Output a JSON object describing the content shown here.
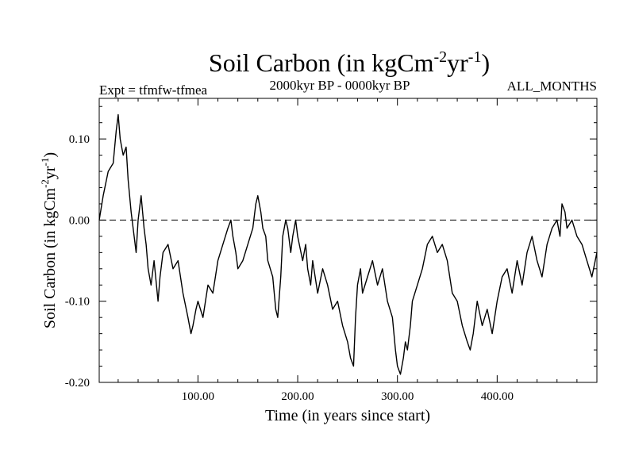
{
  "chart_data": {
    "type": "line",
    "title": "Soil Carbon (in kgCm",
    "title_sup1": "-2",
    "title_mid": "yr",
    "title_sup2": "-1",
    "title_end": ")",
    "subtitle_left": "Expt = tfmfw-tfmea",
    "subtitle_center": "2000kyr BP - 0000kyr BP",
    "subtitle_right": "ALL_MONTHS",
    "xlabel": "Time (in years since start)",
    "ylabel": "Soil Carbon (in kgCm",
    "ylabel_sup1": "-2",
    "ylabel_mid": "yr",
    "ylabel_sup2": "-1",
    "ylabel_end": ")",
    "xlim": [
      1,
      500
    ],
    "ylim": [
      -0.2,
      0.15
    ],
    "xticks": [
      100,
      200,
      300,
      400
    ],
    "xtick_labels": [
      "100.00",
      "200.00",
      "300.00",
      "400.00"
    ],
    "yticks": [
      0.1,
      0.0,
      -0.1,
      -0.2
    ],
    "ytick_labels": [
      "0.10",
      "0.00",
      "-0.10",
      "-0.20"
    ],
    "zero_line": 0.0,
    "series": [
      {
        "name": "Soil Carbon",
        "color": "#000000",
        "x": [
          1,
          5,
          10,
          15,
          18,
          20,
          22,
          25,
          28,
          30,
          33,
          36,
          38,
          40,
          43,
          46,
          48,
          50,
          53,
          56,
          60,
          62,
          65,
          70,
          75,
          80,
          85,
          90,
          93,
          95,
          98,
          100,
          105,
          110,
          115,
          120,
          125,
          130,
          133,
          135,
          138,
          140,
          145,
          150,
          155,
          158,
          160,
          163,
          165,
          168,
          170,
          175,
          178,
          180,
          183,
          185,
          188,
          190,
          193,
          195,
          198,
          200,
          205,
          208,
          210,
          213,
          215,
          220,
          225,
          230,
          235,
          240,
          245,
          250,
          253,
          256,
          258,
          260,
          263,
          265,
          270,
          275,
          280,
          285,
          290,
          295,
          298,
          300,
          303,
          306,
          308,
          310,
          313,
          315,
          320,
          325,
          330,
          335,
          340,
          345,
          350,
          355,
          360,
          365,
          370,
          373,
          376,
          378,
          380,
          385,
          390,
          395,
          400,
          405,
          410,
          415,
          420,
          425,
          430,
          435,
          440,
          445,
          450,
          455,
          460,
          463,
          465,
          468,
          470,
          475,
          480,
          485,
          490,
          495,
          500
        ],
        "values": [
          0.0,
          0.03,
          0.06,
          0.07,
          0.11,
          0.13,
          0.1,
          0.08,
          0.09,
          0.05,
          0.01,
          -0.02,
          -0.04,
          0.0,
          0.03,
          -0.01,
          -0.03,
          -0.06,
          -0.08,
          -0.05,
          -0.1,
          -0.07,
          -0.04,
          -0.03,
          -0.06,
          -0.05,
          -0.09,
          -0.12,
          -0.14,
          -0.13,
          -0.11,
          -0.1,
          -0.12,
          -0.08,
          -0.09,
          -0.05,
          -0.03,
          -0.01,
          0.0,
          -0.02,
          -0.04,
          -0.06,
          -0.05,
          -0.03,
          -0.01,
          0.02,
          0.03,
          0.01,
          -0.01,
          -0.02,
          -0.05,
          -0.07,
          -0.11,
          -0.12,
          -0.07,
          -0.02,
          0.0,
          -0.01,
          -0.04,
          -0.02,
          0.0,
          -0.02,
          -0.05,
          -0.03,
          -0.06,
          -0.08,
          -0.05,
          -0.09,
          -0.06,
          -0.08,
          -0.11,
          -0.1,
          -0.13,
          -0.15,
          -0.17,
          -0.18,
          -0.12,
          -0.08,
          -0.06,
          -0.09,
          -0.07,
          -0.05,
          -0.08,
          -0.06,
          -0.1,
          -0.12,
          -0.16,
          -0.18,
          -0.19,
          -0.17,
          -0.15,
          -0.16,
          -0.13,
          -0.1,
          -0.08,
          -0.06,
          -0.03,
          -0.02,
          -0.04,
          -0.03,
          -0.05,
          -0.09,
          -0.1,
          -0.13,
          -0.15,
          -0.16,
          -0.14,
          -0.12,
          -0.1,
          -0.13,
          -0.11,
          -0.14,
          -0.1,
          -0.07,
          -0.06,
          -0.09,
          -0.05,
          -0.08,
          -0.04,
          -0.02,
          -0.05,
          -0.07,
          -0.03,
          -0.01,
          0.0,
          -0.02,
          0.02,
          0.01,
          -0.01,
          0.0,
          -0.02,
          -0.03,
          -0.05,
          -0.07,
          -0.04
        ]
      }
    ]
  }
}
